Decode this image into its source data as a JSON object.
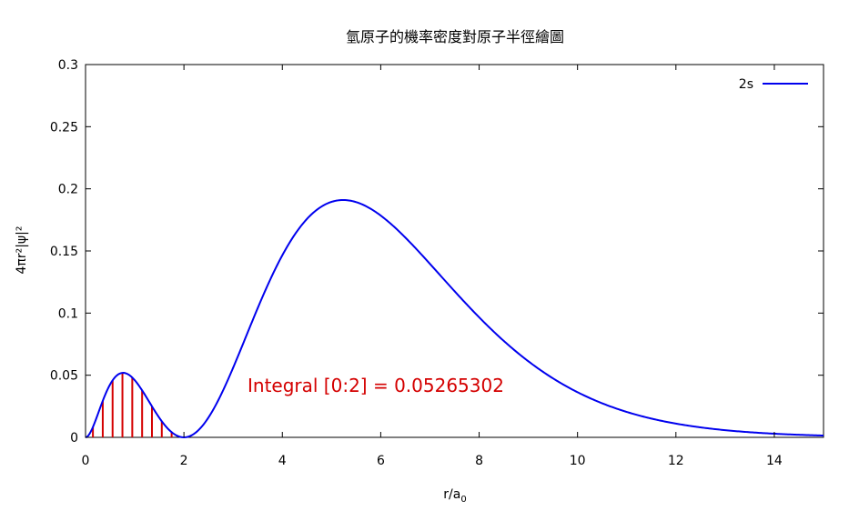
{
  "chart_data": {
    "type": "line",
    "title": "氫原子的機率密度對原子半徑繪圖",
    "xlabel": "r/a",
    "xlabel_subscript": "0",
    "ylabel": "4πr²|ψ|²",
    "xlim": [
      0,
      15
    ],
    "ylim": [
      0,
      0.3
    ],
    "x_ticks": [
      0,
      2,
      4,
      6,
      8,
      10,
      12,
      14
    ],
    "y_ticks": [
      0,
      0.05,
      0.1,
      0.15,
      0.2,
      0.25,
      0.3
    ],
    "x_tick_labels": [
      "0",
      "2",
      "4",
      "6",
      "8",
      "10",
      "12",
      "14"
    ],
    "y_tick_labels": [
      "0",
      "0.05",
      "0.1",
      "0.15",
      "0.2",
      "0.25",
      "0.3"
    ],
    "grid": false,
    "legend_position": "top-right",
    "series": [
      {
        "name": "2s",
        "color": "#0000ee",
        "x": [
          0,
          0.25,
          0.5,
          0.76,
          1.0,
          1.25,
          1.5,
          1.75,
          2.0,
          2.5,
          3.0,
          3.5,
          4.0,
          4.5,
          5.0,
          5.24,
          5.5,
          6.0,
          7.0,
          8.0,
          9.0,
          10.0,
          11.0,
          12.0,
          13.0,
          14.0,
          15.0
        ],
        "y": [
          0,
          0.0267,
          0.0447,
          0.0519,
          0.0455,
          0.0314,
          0.0158,
          0.0045,
          0,
          0.0156,
          0.0502,
          0.0903,
          0.1268,
          0.1687,
          0.1875,
          0.1908,
          0.1896,
          0.1785,
          0.1446,
          0.0984,
          0.0598,
          0.0343,
          0.0185,
          0.0096,
          0.0048,
          0.0022,
          0.001
        ]
      }
    ],
    "integral": {
      "from": 0,
      "to": 2,
      "color": "#d40000",
      "hatch_x": [
        0.15,
        0.35,
        0.55,
        0.75,
        0.95,
        1.15,
        1.35,
        1.55,
        1.75,
        1.95
      ]
    },
    "annotation": "Integral [0:2] = 0.05265302",
    "annotation_color": "#d40000"
  }
}
